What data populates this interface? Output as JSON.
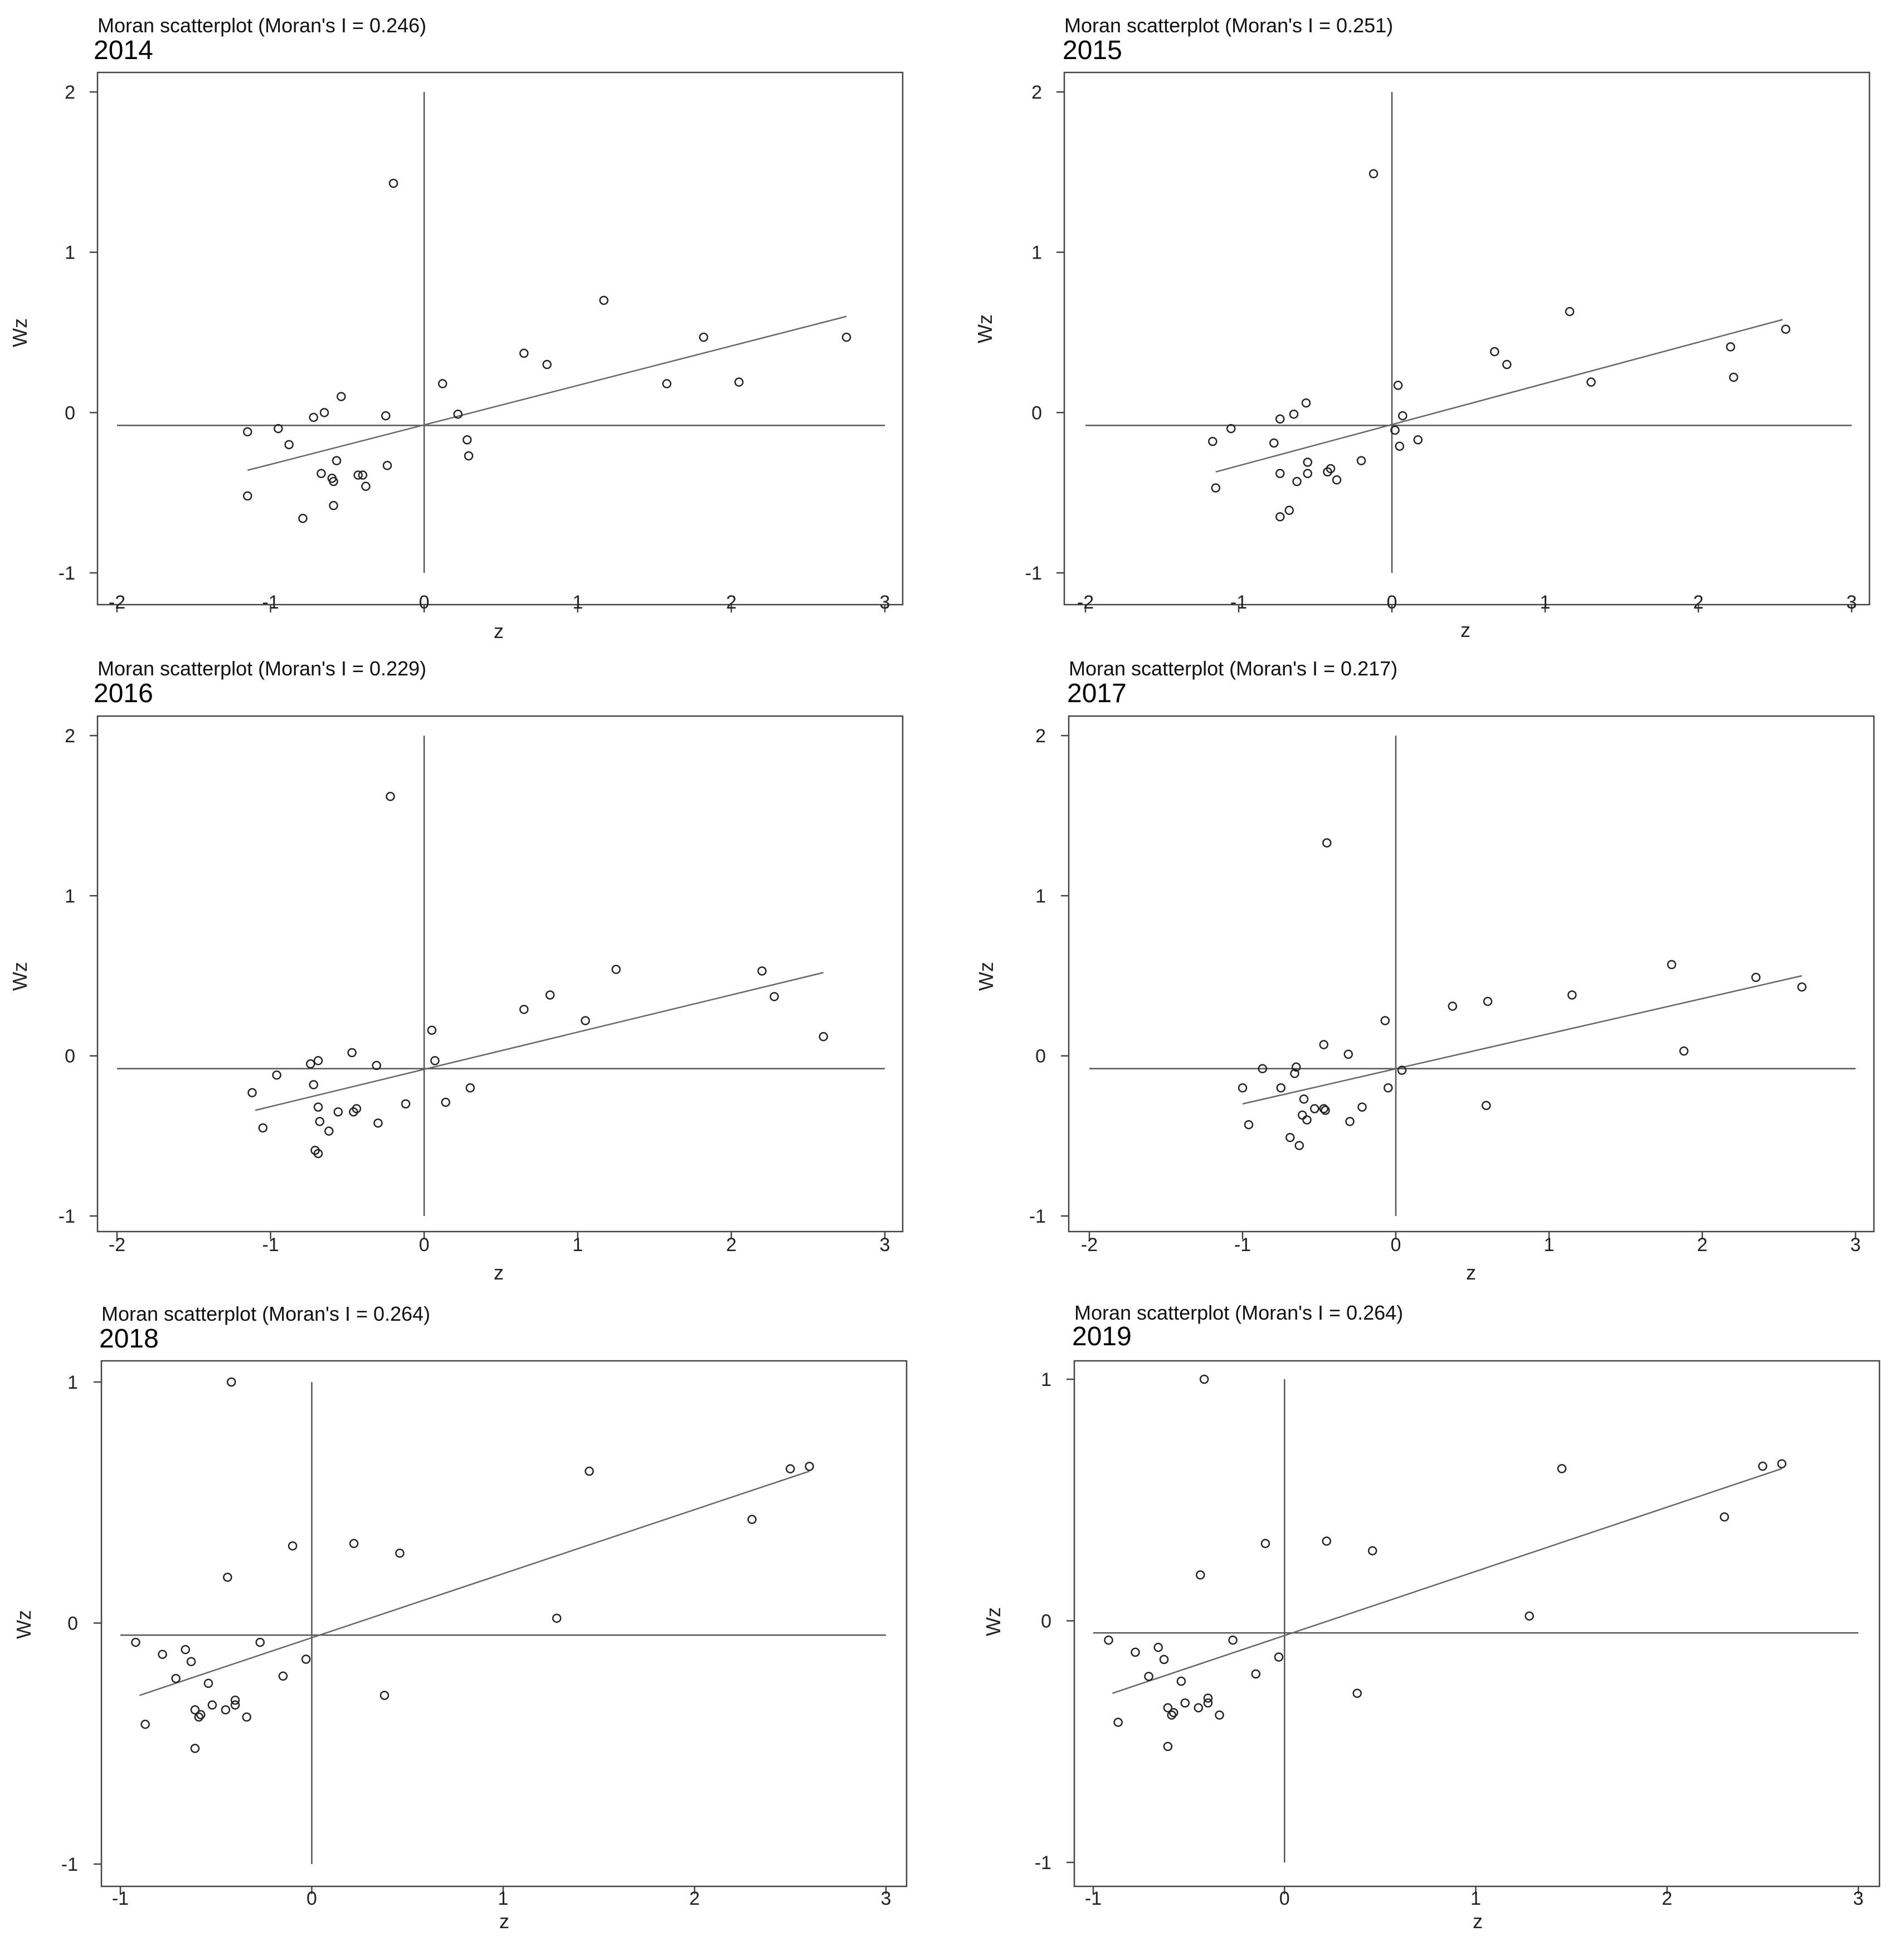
{
  "figure": {
    "panels": [
      {
        "title": "Moran scatterplot (Moran's I = 0.246)",
        "year": "2014"
      },
      {
        "title": "Moran scatterplot (Moran's I = 0.251)",
        "year": "2015"
      },
      {
        "title": "Moran scatterplot (Moran's I = 0.229)",
        "year": "2016"
      },
      {
        "title": "Moran scatterplot (Moran's I = 0.217)",
        "year": "2017"
      },
      {
        "title": "Moran scatterplot (Moran's I = 0.264)",
        "year": "2018"
      },
      {
        "title": "Moran scatterplot (Moran's I = 0.264)",
        "year": "2019"
      }
    ]
  },
  "chart_data": [
    {
      "type": "scatter",
      "title": "Moran scatterplot (Moran's I = 0.246)",
      "year": "2014",
      "xlabel": "z",
      "ylabel": "Wz",
      "xlim": [
        -2,
        3
      ],
      "ylim": [
        -1,
        2
      ],
      "xticks": [
        -2,
        -1,
        0,
        1,
        2,
        3
      ],
      "yticks": [
        -1,
        0,
        1,
        2
      ],
      "grid": false,
      "reference_lines": {
        "x": 0,
        "y": -0.08
      },
      "fit_line": {
        "x": [
          -1.15,
          2.75
        ],
        "y": [
          -0.36,
          0.6
        ]
      },
      "points": [
        [
          -0.2,
          1.43
        ],
        [
          1.17,
          0.7
        ],
        [
          0.65,
          0.37
        ],
        [
          0.8,
          0.3
        ],
        [
          1.82,
          0.47
        ],
        [
          2.75,
          0.47
        ],
        [
          2.05,
          0.19
        ],
        [
          1.58,
          0.18
        ],
        [
          0.12,
          0.18
        ],
        [
          0.22,
          -0.01
        ],
        [
          0.28,
          -0.17
        ],
        [
          0.29,
          -0.27
        ],
        [
          -0.54,
          0.1
        ],
        [
          -0.65,
          0.0
        ],
        [
          -0.72,
          -0.03
        ],
        [
          -0.25,
          -0.02
        ],
        [
          -0.95,
          -0.1
        ],
        [
          -1.15,
          -0.12
        ],
        [
          -0.88,
          -0.2
        ],
        [
          -0.57,
          -0.3
        ],
        [
          -0.24,
          -0.33
        ],
        [
          -0.67,
          -0.38
        ],
        [
          -0.6,
          -0.41
        ],
        [
          -0.59,
          -0.43
        ],
        [
          -0.4,
          -0.39
        ],
        [
          -0.43,
          -0.39
        ],
        [
          -0.38,
          -0.46
        ],
        [
          -1.15,
          -0.52
        ],
        [
          -0.59,
          -0.58
        ],
        [
          -0.79,
          -0.66
        ]
      ]
    },
    {
      "type": "scatter",
      "title": "Moran scatterplot (Moran's I = 0.251)",
      "year": "2015",
      "xlabel": "z",
      "ylabel": "Wz",
      "xlim": [
        -2,
        3
      ],
      "ylim": [
        -1,
        2
      ],
      "xticks": [
        -2,
        -1,
        0,
        1,
        2,
        3
      ],
      "yticks": [
        -1,
        0,
        1,
        2
      ],
      "grid": false,
      "reference_lines": {
        "x": 0,
        "y": -0.08
      },
      "fit_line": {
        "x": [
          -1.15,
          2.55
        ],
        "y": [
          -0.37,
          0.58
        ]
      },
      "points": [
        [
          -0.12,
          1.49
        ],
        [
          1.16,
          0.63
        ],
        [
          2.57,
          0.52
        ],
        [
          2.21,
          0.41
        ],
        [
          0.67,
          0.38
        ],
        [
          0.75,
          0.3
        ],
        [
          2.23,
          0.22
        ],
        [
          1.3,
          0.19
        ],
        [
          0.04,
          0.17
        ],
        [
          0.07,
          -0.02
        ],
        [
          0.02,
          -0.11
        ],
        [
          0.17,
          -0.17
        ],
        [
          0.05,
          -0.21
        ],
        [
          -0.56,
          0.06
        ],
        [
          -0.64,
          -0.01
        ],
        [
          -0.73,
          -0.04
        ],
        [
          -1.05,
          -0.1
        ],
        [
          -1.17,
          -0.18
        ],
        [
          -0.77,
          -0.19
        ],
        [
          -0.2,
          -0.3
        ],
        [
          -0.55,
          -0.31
        ],
        [
          -0.4,
          -0.35
        ],
        [
          -0.42,
          -0.37
        ],
        [
          -0.55,
          -0.38
        ],
        [
          -0.73,
          -0.38
        ],
        [
          -0.62,
          -0.43
        ],
        [
          -0.36,
          -0.42
        ],
        [
          -1.15,
          -0.47
        ],
        [
          -0.67,
          -0.61
        ],
        [
          -0.73,
          -0.65
        ]
      ]
    },
    {
      "type": "scatter",
      "title": "Moran scatterplot (Moran's I = 0.229)",
      "year": "2016",
      "xlabel": "z",
      "ylabel": "Wz",
      "xlim": [
        -2,
        3
      ],
      "ylim": [
        -1,
        2
      ],
      "xticks": [
        -2,
        -1,
        0,
        1,
        2,
        3
      ],
      "yticks": [
        -1,
        0,
        1,
        2
      ],
      "grid": false,
      "reference_lines": {
        "x": 0,
        "y": -0.08
      },
      "fit_line": {
        "x": [
          -1.1,
          2.6
        ],
        "y": [
          -0.34,
          0.52
        ]
      },
      "points": [
        [
          -0.22,
          1.62
        ],
        [
          1.25,
          0.54
        ],
        [
          2.2,
          0.53
        ],
        [
          0.82,
          0.38
        ],
        [
          2.28,
          0.37
        ],
        [
          0.65,
          0.29
        ],
        [
          1.05,
          0.22
        ],
        [
          0.05,
          0.16
        ],
        [
          2.6,
          0.12
        ],
        [
          0.07,
          -0.03
        ],
        [
          -0.47,
          0.02
        ],
        [
          -0.69,
          -0.03
        ],
        [
          -0.74,
          -0.05
        ],
        [
          -0.31,
          -0.06
        ],
        [
          -0.96,
          -0.12
        ],
        [
          -1.12,
          -0.23
        ],
        [
          -0.72,
          -0.18
        ],
        [
          0.3,
          -0.2
        ],
        [
          0.14,
          -0.29
        ],
        [
          -0.12,
          -0.3
        ],
        [
          -0.69,
          -0.32
        ],
        [
          -0.44,
          -0.33
        ],
        [
          -0.46,
          -0.35
        ],
        [
          -0.56,
          -0.35
        ],
        [
          -0.68,
          -0.41
        ],
        [
          -0.3,
          -0.42
        ],
        [
          -1.05,
          -0.45
        ],
        [
          -0.62,
          -0.47
        ],
        [
          -0.71,
          -0.59
        ],
        [
          -0.69,
          -0.61
        ]
      ]
    },
    {
      "type": "scatter",
      "title": "Moran scatterplot (Moran's I = 0.217)",
      "year": "2017",
      "xlabel": "z",
      "ylabel": "Wz",
      "xlim": [
        -2,
        3
      ],
      "ylim": [
        -1,
        2
      ],
      "xticks": [
        -2,
        -1,
        0,
        1,
        2,
        3
      ],
      "yticks": [
        -1,
        0,
        1,
        2
      ],
      "grid": false,
      "reference_lines": {
        "x": 0,
        "y": -0.08
      },
      "fit_line": {
        "x": [
          -1.0,
          2.65
        ],
        "y": [
          -0.3,
          0.5
        ]
      },
      "points": [
        [
          -0.45,
          1.33
        ],
        [
          1.8,
          0.57
        ],
        [
          2.35,
          0.49
        ],
        [
          2.65,
          0.43
        ],
        [
          1.15,
          0.38
        ],
        [
          0.6,
          0.34
        ],
        [
          0.37,
          0.31
        ],
        [
          -0.07,
          0.22
        ],
        [
          -0.47,
          0.07
        ],
        [
          -0.31,
          0.01
        ],
        [
          1.88,
          0.03
        ],
        [
          0.04,
          -0.09
        ],
        [
          -0.87,
          -0.08
        ],
        [
          -0.65,
          -0.07
        ],
        [
          -0.66,
          -0.11
        ],
        [
          -0.05,
          -0.2
        ],
        [
          -1.0,
          -0.2
        ],
        [
          -0.75,
          -0.2
        ],
        [
          -0.6,
          -0.27
        ],
        [
          0.59,
          -0.31
        ],
        [
          -0.22,
          -0.32
        ],
        [
          -0.47,
          -0.33
        ],
        [
          -0.46,
          -0.34
        ],
        [
          -0.53,
          -0.33
        ],
        [
          -0.61,
          -0.37
        ],
        [
          -0.58,
          -0.4
        ],
        [
          -0.3,
          -0.41
        ],
        [
          -0.96,
          -0.43
        ],
        [
          -0.69,
          -0.51
        ],
        [
          -0.63,
          -0.56
        ]
      ]
    },
    {
      "type": "scatter",
      "title": "Moran scatterplot (Moran's I = 0.264)",
      "year": "2018",
      "xlabel": "z",
      "ylabel": "Wz",
      "xlim": [
        -1,
        3
      ],
      "ylim": [
        -1,
        1
      ],
      "xticks": [
        -1,
        0,
        1,
        2,
        3
      ],
      "yticks": [
        -1,
        0,
        1
      ],
      "grid": false,
      "reference_lines": {
        "x": 0,
        "y": -0.05
      },
      "fit_line": {
        "x": [
          -0.9,
          2.6
        ],
        "y": [
          -0.3,
          0.63
        ]
      },
      "points": [
        [
          -0.42,
          1.0
        ],
        [
          2.6,
          0.65
        ],
        [
          2.5,
          0.64
        ],
        [
          1.45,
          0.63
        ],
        [
          2.3,
          0.43
        ],
        [
          -0.1,
          0.32
        ],
        [
          0.22,
          0.33
        ],
        [
          0.46,
          0.29
        ],
        [
          -0.44,
          0.19
        ],
        [
          1.28,
          0.02
        ],
        [
          -0.92,
          -0.08
        ],
        [
          -0.27,
          -0.08
        ],
        [
          -0.66,
          -0.11
        ],
        [
          -0.78,
          -0.13
        ],
        [
          -0.03,
          -0.15
        ],
        [
          -0.63,
          -0.16
        ],
        [
          -0.15,
          -0.22
        ],
        [
          -0.71,
          -0.23
        ],
        [
          -0.54,
          -0.25
        ],
        [
          0.38,
          -0.3
        ],
        [
          -0.4,
          -0.32
        ],
        [
          -0.4,
          -0.34
        ],
        [
          -0.52,
          -0.34
        ],
        [
          -0.45,
          -0.36
        ],
        [
          -0.61,
          -0.36
        ],
        [
          -0.58,
          -0.38
        ],
        [
          -0.59,
          -0.39
        ],
        [
          -0.34,
          -0.39
        ],
        [
          -0.87,
          -0.42
        ],
        [
          -0.61,
          -0.52
        ]
      ]
    },
    {
      "type": "scatter",
      "title": "Moran scatterplot (Moran's I = 0.264)",
      "year": "2019",
      "xlabel": "z",
      "ylabel": "Wz",
      "xlim": [
        -1,
        3
      ],
      "ylim": [
        -1,
        1
      ],
      "xticks": [
        -1,
        0,
        1,
        2,
        3
      ],
      "yticks": [
        -1,
        0,
        1
      ],
      "grid": false,
      "reference_lines": {
        "x": 0,
        "y": -0.05
      },
      "fit_line": {
        "x": [
          -0.9,
          2.6
        ],
        "y": [
          -0.3,
          0.63
        ]
      },
      "points": [
        [
          -0.42,
          1.0
        ],
        [
          2.6,
          0.65
        ],
        [
          2.5,
          0.64
        ],
        [
          1.45,
          0.63
        ],
        [
          2.3,
          0.43
        ],
        [
          -0.1,
          0.32
        ],
        [
          0.22,
          0.33
        ],
        [
          0.46,
          0.29
        ],
        [
          -0.44,
          0.19
        ],
        [
          1.28,
          0.02
        ],
        [
          -0.92,
          -0.08
        ],
        [
          -0.27,
          -0.08
        ],
        [
          -0.66,
          -0.11
        ],
        [
          -0.78,
          -0.13
        ],
        [
          -0.03,
          -0.15
        ],
        [
          -0.63,
          -0.16
        ],
        [
          -0.15,
          -0.22
        ],
        [
          -0.71,
          -0.23
        ],
        [
          -0.54,
          -0.25
        ],
        [
          0.38,
          -0.3
        ],
        [
          -0.4,
          -0.32
        ],
        [
          -0.4,
          -0.34
        ],
        [
          -0.52,
          -0.34
        ],
        [
          -0.45,
          -0.36
        ],
        [
          -0.61,
          -0.36
        ],
        [
          -0.58,
          -0.38
        ],
        [
          -0.59,
          -0.39
        ],
        [
          -0.34,
          -0.39
        ],
        [
          -0.87,
          -0.42
        ],
        [
          -0.61,
          -0.52
        ]
      ]
    }
  ]
}
